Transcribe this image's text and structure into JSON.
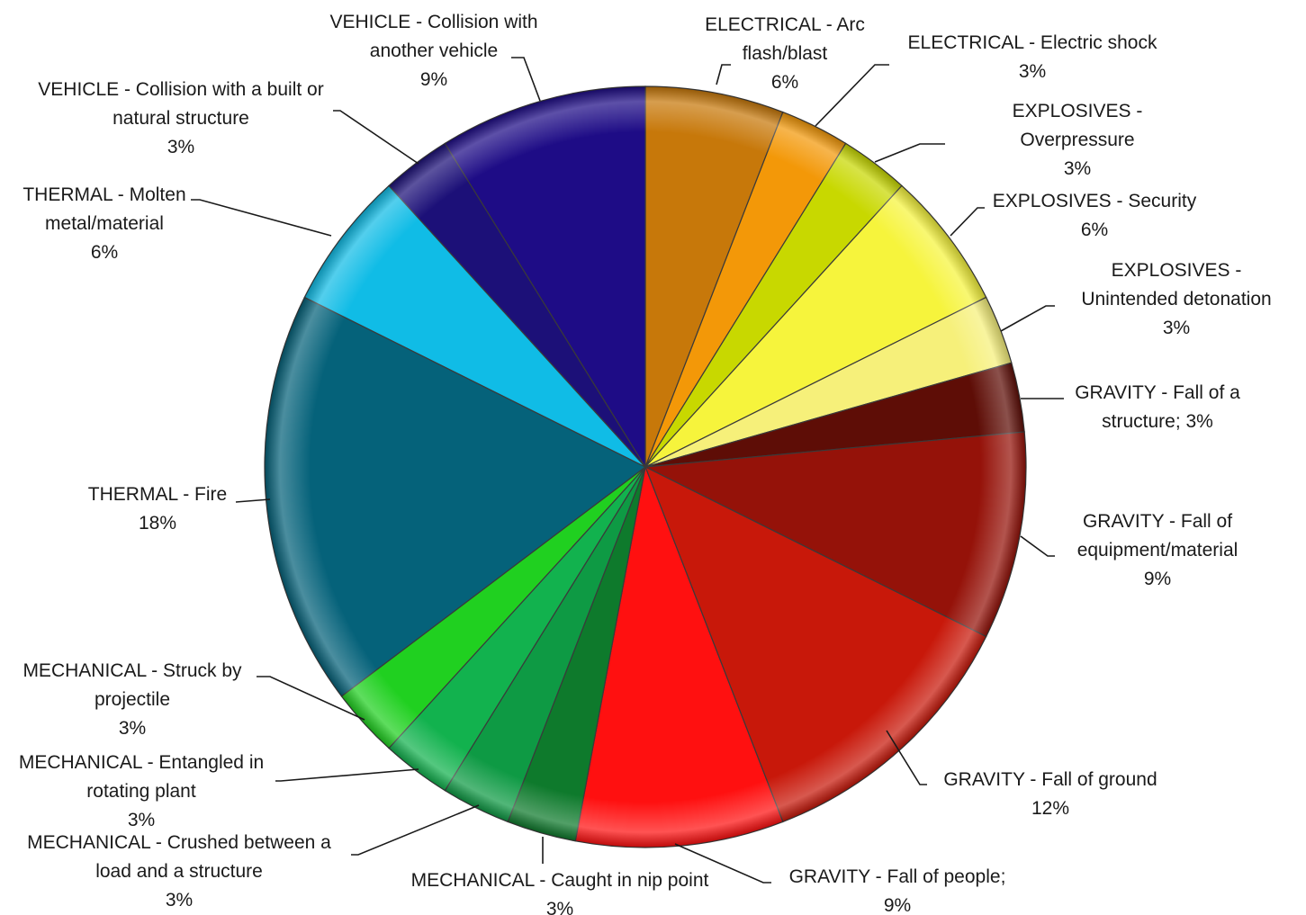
{
  "chart_data": {
    "type": "pie",
    "title": "",
    "slices": [
      {
        "label_lines": [
          "ELECTRICAL - Arc",
          "flash/blast",
          "6%"
        ],
        "category": "ELECTRICAL - Arc flash/blast",
        "value": 6,
        "color": "#C7780A"
      },
      {
        "label_lines": [
          "ELECTRICAL - Electric shock",
          "3%"
        ],
        "category": "ELECTRICAL - Electric shock",
        "value": 3,
        "color": "#F39808"
      },
      {
        "label_lines": [
          "EXPLOSIVES -",
          "Overpressure",
          "3%"
        ],
        "category": "EXPLOSIVES - Overpressure",
        "value": 3,
        "color": "#C8D800"
      },
      {
        "label_lines": [
          "EXPLOSIVES - Security",
          "6%"
        ],
        "category": "EXPLOSIVES - Security",
        "value": 6,
        "color": "#F6F43C"
      },
      {
        "label_lines": [
          "EXPLOSIVES -",
          "Unintended detonation",
          "3%"
        ],
        "category": "EXPLOSIVES - Unintended detonation",
        "value": 3,
        "color": "#F6F07A"
      },
      {
        "label_lines": [
          "GRAVITY - Fall of a",
          "structure; 3%"
        ],
        "category": "GRAVITY - Fall of a structure",
        "value": 3,
        "color": "#5E0D06"
      },
      {
        "label_lines": [
          "GRAVITY - Fall of",
          "equipment/material",
          "9%"
        ],
        "category": "GRAVITY - Fall of equipment/material",
        "value": 9,
        "color": "#951209"
      },
      {
        "label_lines": [
          "GRAVITY - Fall of ground",
          "12%"
        ],
        "category": "GRAVITY - Fall of ground",
        "value": 12,
        "color": "#C8180A"
      },
      {
        "label_lines": [
          "GRAVITY - Fall of people;",
          "9%"
        ],
        "category": "GRAVITY - Fall of people",
        "value": 9,
        "color": "#FF1010"
      },
      {
        "label_lines": [
          "MECHANICAL - Caught in nip point",
          "3%"
        ],
        "category": "MECHANICAL - Caught in nip point",
        "value": 3,
        "color": "#0E7A2C"
      },
      {
        "label_lines": [
          "MECHANICAL - Crushed between a",
          "load and a structure",
          "3%"
        ],
        "category": "MECHANICAL - Crushed between a load and a structure",
        "value": 3,
        "color": "#0E9A44"
      },
      {
        "label_lines": [
          "MECHANICAL - Entangled in",
          "rotating plant",
          "3%"
        ],
        "category": "MECHANICAL - Entangled in rotating plant",
        "value": 3,
        "color": "#12B24E"
      },
      {
        "label_lines": [
          "MECHANICAL - Struck by",
          "projectile",
          "3%"
        ],
        "category": "MECHANICAL - Struck by projectile",
        "value": 3,
        "color": "#20D020"
      },
      {
        "label_lines": [
          "THERMAL - Fire",
          "18%"
        ],
        "category": "THERMAL - Fire",
        "value": 18,
        "color": "#05627A"
      },
      {
        "label_lines": [
          "THERMAL - Molten",
          "metal/material",
          "6%"
        ],
        "category": "THERMAL - Molten metal/material",
        "value": 6,
        "color": "#10BCE6"
      },
      {
        "label_lines": [
          "VEHICLE - Collision with a built or",
          "natural structure",
          "3%"
        ],
        "category": "VEHICLE - Collision with a built or natural structure",
        "value": 3,
        "color": "#1C1078"
      },
      {
        "label_lines": [
          "VEHICLE - Collision with",
          "another vehicle",
          "9%"
        ],
        "category": "VEHICLE - Collision with another vehicle",
        "value": 9,
        "color": "#1E0C86"
      }
    ]
  }
}
